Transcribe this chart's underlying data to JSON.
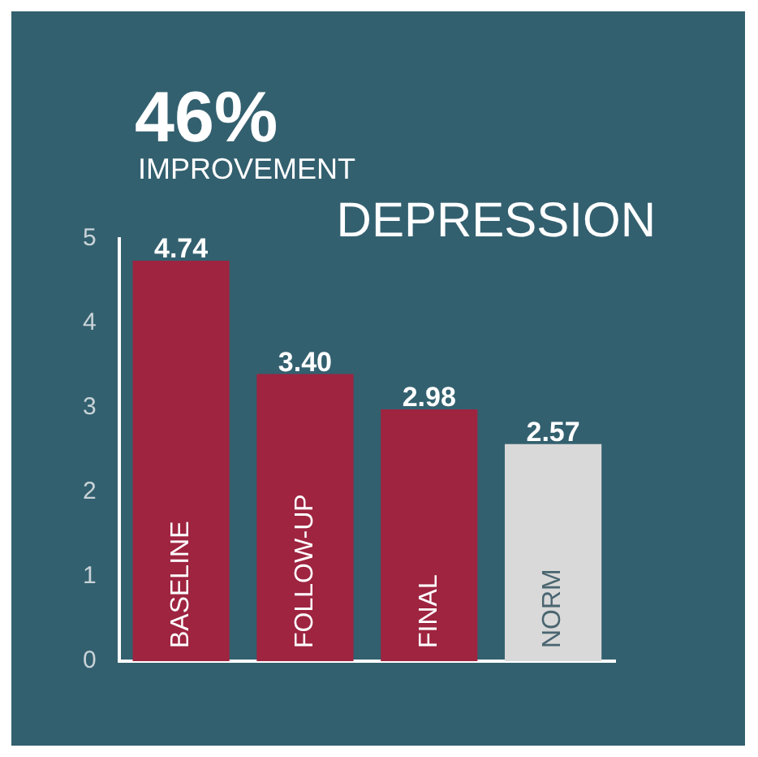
{
  "chart_data": {
    "type": "bar",
    "title": "DEPRESSION",
    "annotations": [
      "46%",
      "IMPROVEMENT"
    ],
    "categories": [
      "BASELINE",
      "FOLLOW-UP",
      "FINAL",
      "NORM"
    ],
    "values": [
      4.74,
      3.4,
      2.98,
      2.57
    ],
    "value_labels": [
      "4.74",
      "3.40",
      "2.98",
      "2.57"
    ],
    "colors": [
      "#9e2440",
      "#9e2440",
      "#9e2440",
      "#d9d9d9"
    ],
    "ylim": [
      0,
      5
    ],
    "yticks": [
      0,
      1,
      2,
      3,
      4,
      5
    ],
    "grid": false,
    "legend": false
  }
}
